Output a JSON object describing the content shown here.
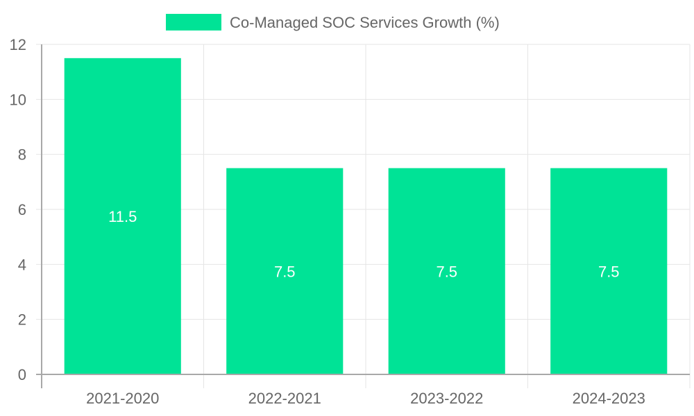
{
  "chart_data": {
    "type": "bar",
    "title": "",
    "xlabel": "",
    "ylabel": "",
    "categories": [
      "2021-2020",
      "2022-2021",
      "2023-2022",
      "2024-2023"
    ],
    "series": [
      {
        "name": "Co-Managed SOC Services Growth (%)",
        "values": [
          11.5,
          7.5,
          7.5,
          7.5
        ],
        "color": "#00e396"
      }
    ],
    "data_labels": [
      "11.5",
      "7.5",
      "7.5",
      "7.5"
    ],
    "ylim": [
      0,
      12
    ],
    "yticks": [
      0,
      2,
      4,
      6,
      8,
      10,
      12
    ],
    "ytick_labels": [
      "0",
      "2",
      "4",
      "6",
      "8",
      "10",
      "12"
    ],
    "grid": true,
    "legend": {
      "position": "top-center",
      "label": "Co-Managed SOC Services Growth (%)"
    }
  }
}
